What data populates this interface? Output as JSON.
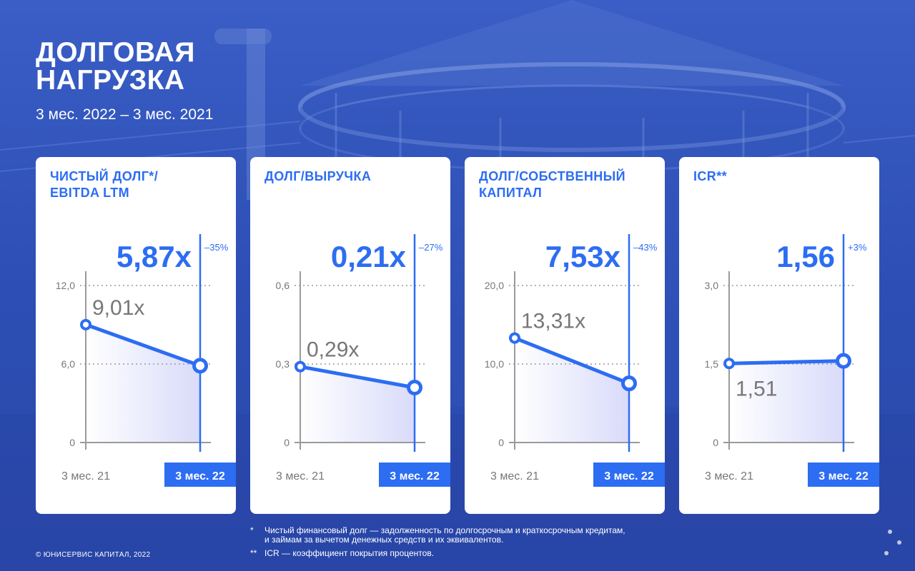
{
  "page": {
    "title_line1": "ДОЛГОВАЯ",
    "title_line2": "НАГРУЗКА",
    "subtitle": "3 мес. 2022 – 3 мес. 2021",
    "copyright": "© ЮНИСЕРВИС КАПИТАЛ, 2022"
  },
  "footnotes": [
    {
      "mark": "*",
      "line1": "Чистый финансовый долг — задолженность по долгосрочным и краткосрочным кредитам,",
      "line2": "и займам за вычетом денежных средств и их эквивалентов."
    },
    {
      "mark": "**",
      "line1": "ICR — коэффициент покрытия процентов.",
      "line2": ""
    }
  ],
  "colors": {
    "accent": "#2c6df2",
    "background": "#2c4fb8",
    "card": "#ffffff",
    "axis": "#9a9a9a",
    "label_gray": "#777777"
  },
  "chart_data": [
    {
      "type": "line",
      "title_line1": "ЧИСТЫЙ ДОЛГ*/",
      "title_line2": "EBITDA LTM",
      "categories": [
        "3 мес. 21",
        "3 мес. 22"
      ],
      "values": [
        9.01,
        5.87
      ],
      "labels": [
        "9,01x",
        "5,87x"
      ],
      "change": "–35%",
      "ylim": [
        0,
        12
      ],
      "yticks": [
        0,
        6,
        12
      ],
      "ytick_labels": [
        "0",
        "6,0",
        "12,0"
      ],
      "prev_label_pos": "above"
    },
    {
      "type": "line",
      "title_line1": "ДОЛГ/ВЫРУЧКА",
      "title_line2": "",
      "categories": [
        "3 мес. 21",
        "3 мес. 22"
      ],
      "values": [
        0.29,
        0.21
      ],
      "labels": [
        "0,29x",
        "0,21x"
      ],
      "change": "–27%",
      "ylim": [
        0,
        0.6
      ],
      "yticks": [
        0,
        0.3,
        0.6
      ],
      "ytick_labels": [
        "0",
        "0,3",
        "0,6"
      ],
      "prev_label_pos": "above"
    },
    {
      "type": "line",
      "title_line1": "ДОЛГ/СОБСТВЕННЫЙ",
      "title_line2": "КАПИТАЛ",
      "categories": [
        "3 мес. 21",
        "3 мес. 22"
      ],
      "values": [
        13.31,
        7.53
      ],
      "labels": [
        "13,31x",
        "7,53x"
      ],
      "change": "–43%",
      "ylim": [
        0,
        20
      ],
      "yticks": [
        0,
        10,
        20
      ],
      "ytick_labels": [
        "0",
        "10,0",
        "20,0"
      ],
      "prev_label_pos": "above"
    },
    {
      "type": "line",
      "title_line1": "ICR**",
      "title_line2": "",
      "categories": [
        "3 мес. 21",
        "3 мес. 22"
      ],
      "values": [
        1.51,
        1.56
      ],
      "labels": [
        "1,51",
        "1,56"
      ],
      "change": "+3%",
      "ylim": [
        0,
        3
      ],
      "yticks": [
        0,
        1.5,
        3
      ],
      "ytick_labels": [
        "0",
        "1,5",
        "3,0"
      ],
      "prev_label_pos": "below"
    }
  ]
}
